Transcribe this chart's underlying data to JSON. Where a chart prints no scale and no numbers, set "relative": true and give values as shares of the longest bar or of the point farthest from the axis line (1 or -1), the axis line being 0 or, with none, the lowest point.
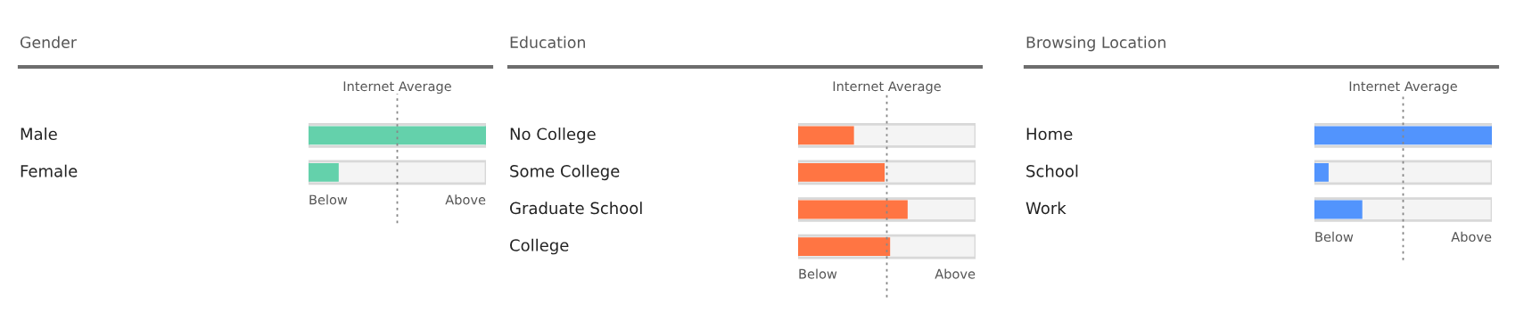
{
  "chart_data": [
    {
      "type": "bar",
      "orientation": "horizontal",
      "relative": true,
      "title": "Gender",
      "categories": [
        "Male",
        "Female"
      ],
      "values": [
        1,
        0.17
      ],
      "color": "#64d1ab",
      "ref_lines": [
        {
          "axis": "x",
          "value": 0.5,
          "label": "Internet Average",
          "line_style": "dotted"
        }
      ],
      "annotations": [
        "Below",
        "Above"
      ]
    },
    {
      "type": "bar",
      "orientation": "horizontal",
      "relative": true,
      "title": "Education",
      "categories": [
        "No College",
        "Some College",
        "Graduate School",
        "College"
      ],
      "values": [
        0.51,
        0.79,
        1,
        0.84
      ],
      "color": "#ff7543",
      "ref_lines": [
        {
          "axis": "x",
          "value": 0.81,
          "label": "Internet Average",
          "line_style": "dotted"
        }
      ],
      "annotations": [
        "Below",
        "Above"
      ]
    },
    {
      "type": "bar",
      "orientation": "horizontal",
      "relative": true,
      "title": "Browsing Location",
      "categories": [
        "Home",
        "School",
        "Work"
      ],
      "values": [
        1,
        0.08,
        0.27
      ],
      "color": "#5294fd",
      "ref_lines": [
        {
          "axis": "x",
          "value": 0.5,
          "label": "Internet Average",
          "line_style": "dotted"
        }
      ],
      "annotations": [
        "Below",
        "Above"
      ]
    }
  ]
}
